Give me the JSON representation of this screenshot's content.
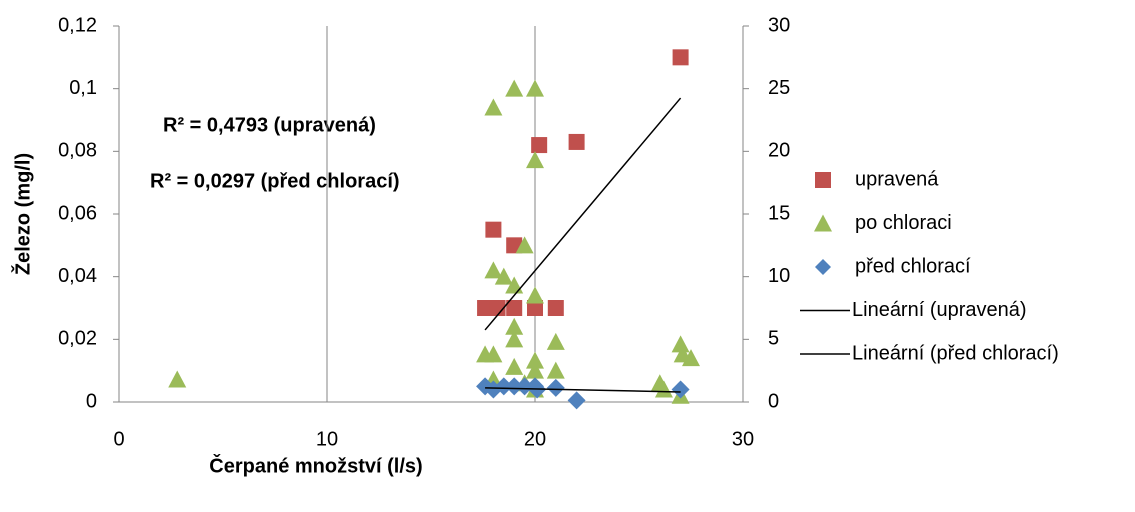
{
  "chart_data": {
    "type": "scatter",
    "xlabel": "Čerpané množství (l/s)",
    "ylabel": "Železo (mg/l)",
    "xlim": [
      0,
      30
    ],
    "xticks": [
      0,
      10,
      20,
      30
    ],
    "ylim": [
      0,
      0.12
    ],
    "yticks": [
      0,
      {
        "value": 0.02,
        "label": "0,02"
      },
      {
        "value": 0.04,
        "label": "0,04"
      },
      {
        "value": 0.06,
        "label": "0,06"
      },
      {
        "value": 0.08,
        "label": "0,08"
      },
      {
        "value": 0.1,
        "label": "0,1"
      },
      {
        "value": 0.12,
        "label": "0,12"
      }
    ],
    "y2lim": [
      0,
      30
    ],
    "y2ticks": [
      0,
      5,
      10,
      15,
      20,
      25,
      30
    ],
    "grid": true,
    "legend": "right",
    "annotations": [
      "R² = 0,4793 (upravená)",
      "R² = 0,0297 (před chlorací)"
    ],
    "series": [
      {
        "name": "upravená",
        "color": "#c0504d",
        "marker": "square",
        "x": [
          27,
          20.2,
          22,
          18,
          19,
          17.6,
          18.2,
          19,
          20,
          21
        ],
        "values": [
          0.11,
          0.082,
          0.083,
          0.055,
          0.05,
          0.03,
          0.03,
          0.03,
          0.03,
          0.03
        ]
      },
      {
        "name": "po chloraci",
        "color": "#9bbb59",
        "marker": "triangle",
        "axis": "y2",
        "x": [
          2.8,
          18,
          19,
          20,
          20,
          19.5,
          18,
          18.5,
          19,
          20,
          19,
          19,
          17.6,
          18,
          20,
          21,
          19,
          20,
          21,
          18,
          19.5,
          20,
          26,
          26.2,
          27,
          27.1,
          27.5,
          27
        ],
        "values": [
          1.8,
          23.5,
          25,
          25,
          19.3,
          12.5,
          10.5,
          10,
          9.3,
          8.5,
          6,
          5,
          3.8,
          3.8,
          3.3,
          4.8,
          2.8,
          2.5,
          2.5,
          1.8,
          1.5,
          1,
          1.5,
          1,
          4.6,
          3.8,
          3.5,
          0.5
        ]
      },
      {
        "name": "před chlorací",
        "color": "#4f81bd",
        "marker": "diamond",
        "x": [
          17.6,
          18,
          18.5,
          19,
          19.5,
          20,
          20.1,
          21,
          22,
          27
        ],
        "values": [
          0.005,
          0.004,
          0.005,
          0.005,
          0.005,
          0.005,
          0.004,
          0.0045,
          0.0005,
          0.004
        ]
      },
      {
        "name": "Lineární (upravená)",
        "color": "#000000",
        "marker": "line",
        "x": [
          17.6,
          27
        ],
        "values": [
          0.023,
          0.097
        ]
      },
      {
        "name": "Lineární (před chlorací)",
        "color": "#000000",
        "marker": "line",
        "x": [
          17.6,
          27
        ],
        "values": [
          0.0045,
          0.0032
        ]
      }
    ]
  }
}
